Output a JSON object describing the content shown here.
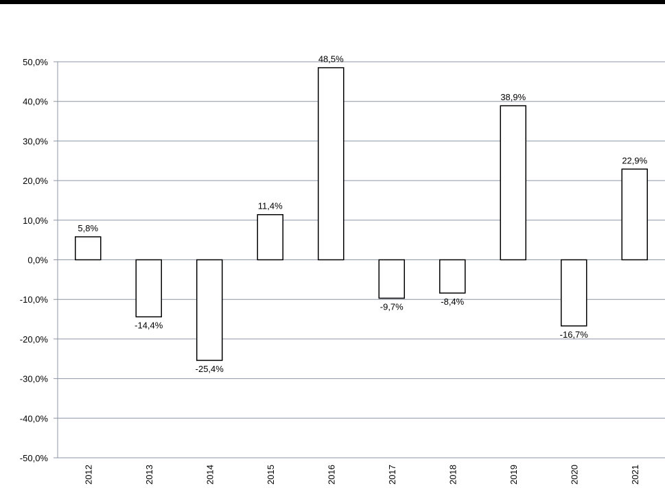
{
  "chart_data": {
    "type": "bar",
    "title": "",
    "xlabel": "",
    "ylabel": "",
    "categories": [
      "2012",
      "2013",
      "2014",
      "2015",
      "2016",
      "2017",
      "2018",
      "2019",
      "2020",
      "2021"
    ],
    "values": [
      5.8,
      -14.4,
      -25.4,
      11.4,
      48.5,
      -9.7,
      -8.4,
      38.9,
      -16.7,
      22.9
    ],
    "data_labels": [
      "5,8%",
      "-14,4%",
      "-25,4%",
      "11,4%",
      "48,5%",
      "-9,7%",
      "-8,4%",
      "38,9%",
      "-16,7%",
      "22,9%"
    ],
    "ylim": [
      -50,
      50
    ],
    "yticks": [
      50,
      40,
      30,
      20,
      10,
      0,
      -10,
      -20,
      -30,
      -40,
      -50
    ],
    "ytick_labels": [
      "50,0%",
      "40,0%",
      "30,0%",
      "20,0%",
      "10,0%",
      "0,0%",
      "-10,0%",
      "-20,0%",
      "-30,0%",
      "-40,0%",
      "-50,0%"
    ],
    "grid": true,
    "legend": "none",
    "colors": {
      "bar_fill": "#ffffff",
      "bar_stroke": "#000000",
      "grid": "#8c96a6",
      "axis": "#8c96a6"
    }
  }
}
